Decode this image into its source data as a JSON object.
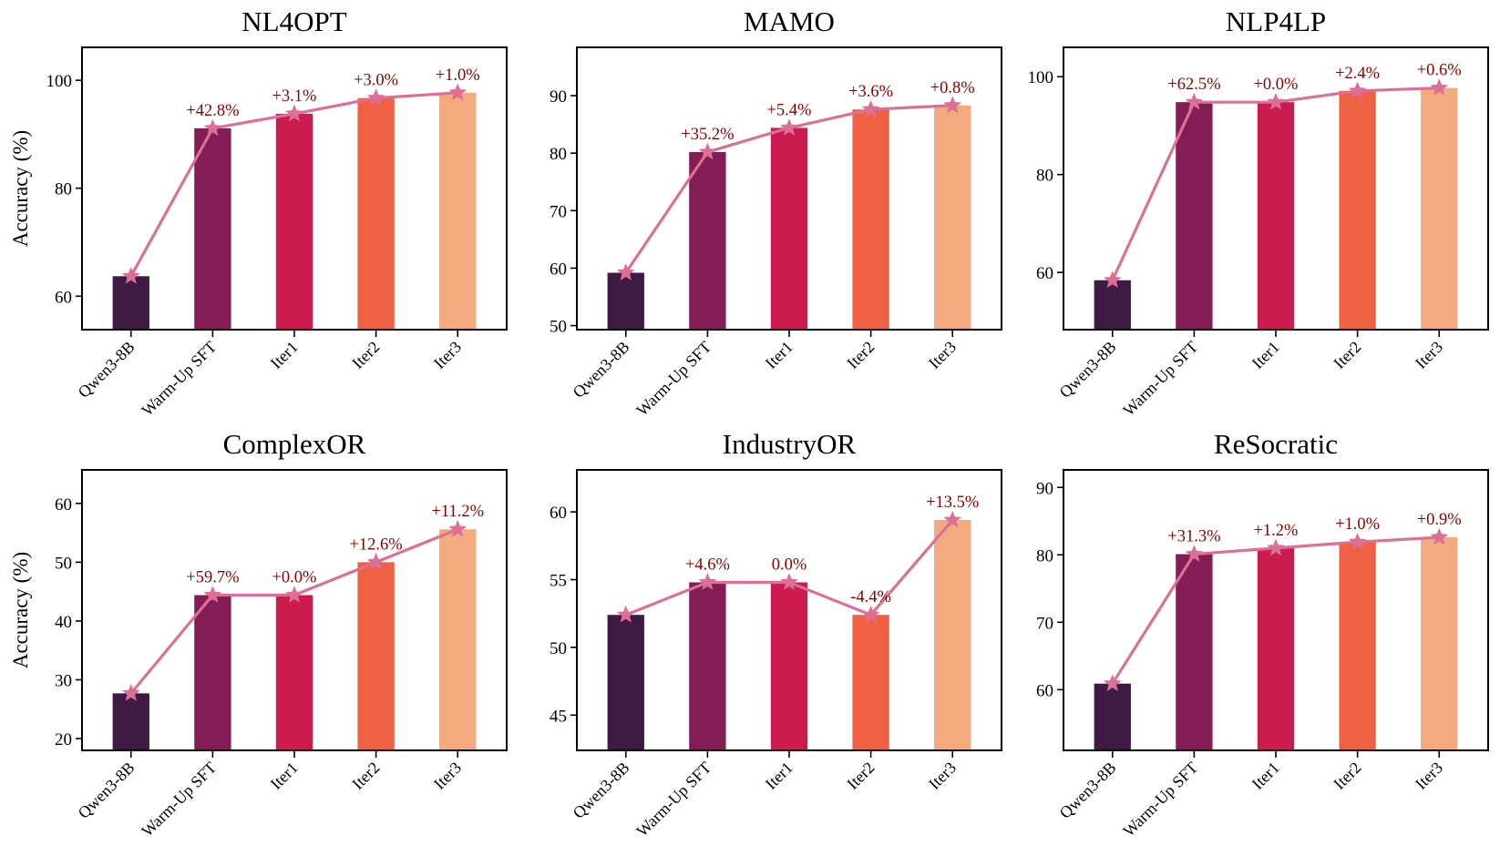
{
  "chart_data": [
    {
      "type": "bar",
      "title": "NL4OPT",
      "ylabel": "Accuracy (%)",
      "categories": [
        "Qwen3-8B",
        "Warm-Up SFT",
        "Iter1",
        "Iter2",
        "Iter3"
      ],
      "values": [
        63.7,
        91.1,
        93.8,
        96.7,
        97.7
      ],
      "annotations": [
        "",
        "+42.8%",
        "+3.1%",
        "+3.0%",
        "+1.0%"
      ],
      "yticks": [
        60,
        80,
        100
      ],
      "ylim": [
        53.8,
        106.1
      ]
    },
    {
      "type": "bar",
      "title": "MAMO",
      "ylabel": "",
      "categories": [
        "Qwen3-8B",
        "Warm-Up SFT",
        "Iter1",
        "Iter2",
        "Iter3"
      ],
      "values": [
        59.2,
        80.2,
        84.4,
        87.6,
        88.3
      ],
      "annotations": [
        "",
        "+35.2%",
        "+5.4%",
        "+3.6%",
        "+0.8%"
      ],
      "yticks": [
        50,
        60,
        70,
        80,
        90
      ],
      "ylim": [
        49.3,
        98.4
      ]
    },
    {
      "type": "bar",
      "title": "NLP4LP",
      "ylabel": "",
      "categories": [
        "Qwen3-8B",
        "Warm-Up SFT",
        "Iter1",
        "Iter2",
        "Iter3"
      ],
      "values": [
        58.4,
        94.8,
        94.8,
        97.1,
        97.7
      ],
      "annotations": [
        "",
        "+62.5%",
        "+0.0%",
        "+2.4%",
        "+0.6%"
      ],
      "yticks": [
        60,
        80,
        100
      ],
      "ylim": [
        48.3,
        106.0
      ]
    },
    {
      "type": "bar",
      "title": "ComplexOR",
      "ylabel": "Accuracy (%)",
      "categories": [
        "Qwen3-8B",
        "Warm-Up SFT",
        "Iter1",
        "Iter2",
        "Iter3"
      ],
      "values": [
        27.7,
        44.4,
        44.4,
        50.0,
        55.6
      ],
      "annotations": [
        "",
        "+59.7%",
        "+0.0%",
        "+12.6%",
        "+11.2%"
      ],
      "yticks": [
        20,
        30,
        40,
        50,
        60
      ],
      "ylim": [
        18.0,
        65.7
      ]
    },
    {
      "type": "bar",
      "title": "IndustryOR",
      "ylabel": "",
      "categories": [
        "Qwen3-8B",
        "Warm-Up SFT",
        "Iter1",
        "Iter2",
        "Iter3"
      ],
      "values": [
        52.4,
        54.8,
        54.8,
        52.4,
        59.4
      ],
      "annotations": [
        "",
        "+4.6%",
        "0.0%",
        "-4.4%",
        "+13.5%"
      ],
      "yticks": [
        45,
        50,
        55,
        60
      ],
      "ylim": [
        42.4,
        63.1
      ]
    },
    {
      "type": "bar",
      "title": "ReSocratic",
      "ylabel": "",
      "categories": [
        "Qwen3-8B",
        "Warm-Up SFT",
        "Iter1",
        "Iter2",
        "Iter3"
      ],
      "values": [
        60.9,
        80.1,
        81.0,
        81.9,
        82.6
      ],
      "annotations": [
        "",
        "+31.3%",
        "+1.2%",
        "+1.0%",
        "+0.9%"
      ],
      "yticks": [
        60,
        70,
        80,
        90
      ],
      "ylim": [
        51.0,
        92.6
      ]
    }
  ],
  "colors": {
    "bars": [
      "#3f1a42",
      "#821d56",
      "#cb1b4f",
      "#ef6142",
      "#f5a97f"
    ],
    "line": "#dc6f96",
    "annotation": "#8b0000",
    "axis": "#000000"
  },
  "style": {
    "line_marker": "star",
    "grid": false,
    "legend": "none"
  }
}
